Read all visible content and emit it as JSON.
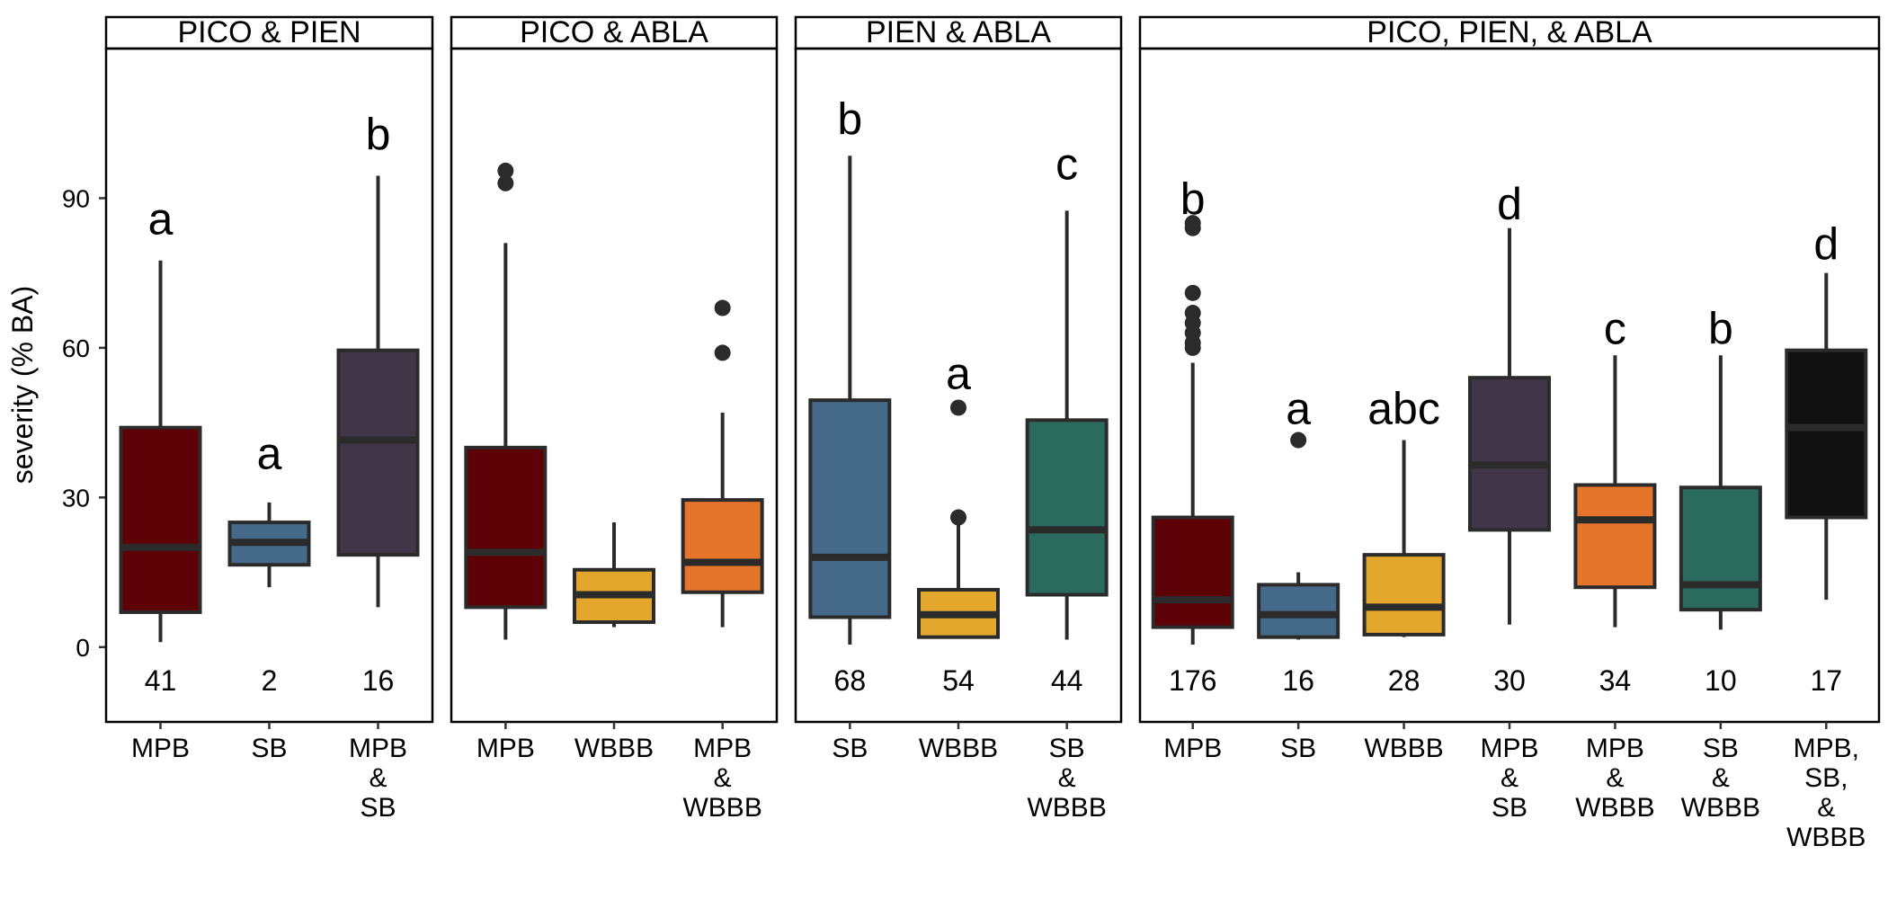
{
  "chart_data": {
    "type": "boxplot",
    "ylabel": "severity (% BA)",
    "ylim": [
      -15,
      120
    ],
    "y_ticks": [
      0,
      30,
      60,
      90
    ],
    "grid": false,
    "colors": {
      "MPB": "#5e0107",
      "SB": "#456a89",
      "MPB & SB": "#3f3747",
      "WBBB": "#e4a72d",
      "MPB & WBBB": "#e5752a",
      "SB & WBBB": "#2a6b5d",
      "MPB, SB, & WBBB": "#111111"
    },
    "panels": [
      {
        "title": "PICO & PIEN",
        "groups": [
          {
            "label": [
              "MPB"
            ],
            "key": "MPB",
            "whisker_low": 1,
            "q1": 7,
            "median": 20,
            "q3": 44,
            "whisker_high": 77.5,
            "outliers": [],
            "letter": "a",
            "letter_y": 86,
            "n": "41"
          },
          {
            "label": [
              "SB"
            ],
            "key": "SB",
            "whisker_low": 12,
            "q1": 16.5,
            "median": 21,
            "q3": 25,
            "whisker_high": 29,
            "outliers": [],
            "letter": "a",
            "letter_y": 39,
            "n": "2"
          },
          {
            "label": [
              "MPB",
              "&",
              "SB"
            ],
            "key": "MPB & SB",
            "whisker_low": 8,
            "q1": 18.5,
            "median": 41.5,
            "q3": 59.5,
            "whisker_high": 94.5,
            "outliers": [],
            "letter": "b",
            "letter_y": 103,
            "n": "16"
          }
        ]
      },
      {
        "title": "PICO & ABLA",
        "groups": [
          {
            "label": [
              "MPB"
            ],
            "key": "MPB",
            "whisker_low": 1.5,
            "q1": 8,
            "median": 19,
            "q3": 40,
            "whisker_high": 81,
            "outliers": [
              93,
              95.5
            ],
            "letter": "",
            "letter_y": 0,
            "n": ""
          },
          {
            "label": [
              "WBBB"
            ],
            "key": "WBBB",
            "whisker_low": 4,
            "q1": 5,
            "median": 10.5,
            "q3": 15.5,
            "whisker_high": 25,
            "outliers": [],
            "letter": "",
            "letter_y": 0,
            "n": ""
          },
          {
            "label": [
              "MPB",
              "&",
              "WBBB"
            ],
            "key": "MPB & WBBB",
            "whisker_low": 4,
            "q1": 11,
            "median": 17,
            "q3": 29.5,
            "whisker_high": 47,
            "outliers": [
              59,
              68
            ],
            "letter": "",
            "letter_y": 0,
            "n": ""
          }
        ]
      },
      {
        "title": "PIEN & ABLA",
        "groups": [
          {
            "label": [
              "SB"
            ],
            "key": "SB",
            "whisker_low": 0.5,
            "q1": 6,
            "median": 18,
            "q3": 49.5,
            "whisker_high": 98.5,
            "outliers": [],
            "letter": "b",
            "letter_y": 106,
            "n": "68"
          },
          {
            "label": [
              "WBBB"
            ],
            "key": "WBBB",
            "whisker_low": 2,
            "q1": 2,
            "median": 6.5,
            "q3": 11.5,
            "whisker_high": 24.5,
            "outliers": [
              26,
              48
            ],
            "letter": "a",
            "letter_y": 55,
            "n": "54"
          },
          {
            "label": [
              "SB",
              "&",
              "WBBB"
            ],
            "key": "SB & WBBB",
            "whisker_low": 1.5,
            "q1": 10.5,
            "median": 23.5,
            "q3": 45.5,
            "whisker_high": 87.5,
            "outliers": [],
            "letter": "c",
            "letter_y": 97,
            "n": "44"
          }
        ]
      },
      {
        "title": "PICO, PIEN, & ABLA",
        "groups": [
          {
            "label": [
              "MPB"
            ],
            "key": "MPB",
            "whisker_low": 0.5,
            "q1": 4,
            "median": 9.5,
            "q3": 26,
            "whisker_high": 57,
            "outliers": [
              60,
              61,
              63,
              65,
              67,
              71,
              84,
              85
            ],
            "letter": "b",
            "letter_y": 90,
            "n": "176"
          },
          {
            "label": [
              "SB"
            ],
            "key": "SB",
            "whisker_low": 1.5,
            "q1": 2,
            "median": 6.5,
            "q3": 12.5,
            "whisker_high": 15,
            "outliers": [
              41.5
            ],
            "letter": "a",
            "letter_y": 48,
            "n": "16"
          },
          {
            "label": [
              "WBBB"
            ],
            "key": "WBBB",
            "whisker_low": 2,
            "q1": 2.5,
            "median": 8,
            "q3": 18.5,
            "whisker_high": 41.5,
            "outliers": [],
            "letter": "abc",
            "letter_y": 48,
            "n": "28"
          },
          {
            "label": [
              "MPB",
              "&",
              "SB"
            ],
            "key": "MPB & SB",
            "whisker_low": 4.5,
            "q1": 23.5,
            "median": 36.5,
            "q3": 54,
            "whisker_high": 84,
            "outliers": [],
            "letter": "d",
            "letter_y": 89,
            "n": "30"
          },
          {
            "label": [
              "MPB",
              "&",
              "WBBB"
            ],
            "key": "MPB & WBBB",
            "whisker_low": 4,
            "q1": 12,
            "median": 25.5,
            "q3": 32.5,
            "whisker_high": 58.5,
            "outliers": [],
            "letter": "c",
            "letter_y": 64,
            "n": "34"
          },
          {
            "label": [
              "SB",
              "&",
              "WBBB"
            ],
            "key": "SB & WBBB",
            "whisker_low": 3.5,
            "q1": 7.5,
            "median": 12.5,
            "q3": 32,
            "whisker_high": 58.5,
            "outliers": [],
            "letter": "b",
            "letter_y": 64,
            "n": "10"
          },
          {
            "label": [
              "MPB,",
              "SB,",
              "&",
              "WBBB"
            ],
            "key": "MPB, SB, & WBBB",
            "whisker_low": 9.5,
            "q1": 26,
            "median": 44,
            "q3": 59.5,
            "whisker_high": 75,
            "outliers": [],
            "letter": "d",
            "letter_y": 81,
            "n": "17"
          }
        ]
      }
    ]
  }
}
